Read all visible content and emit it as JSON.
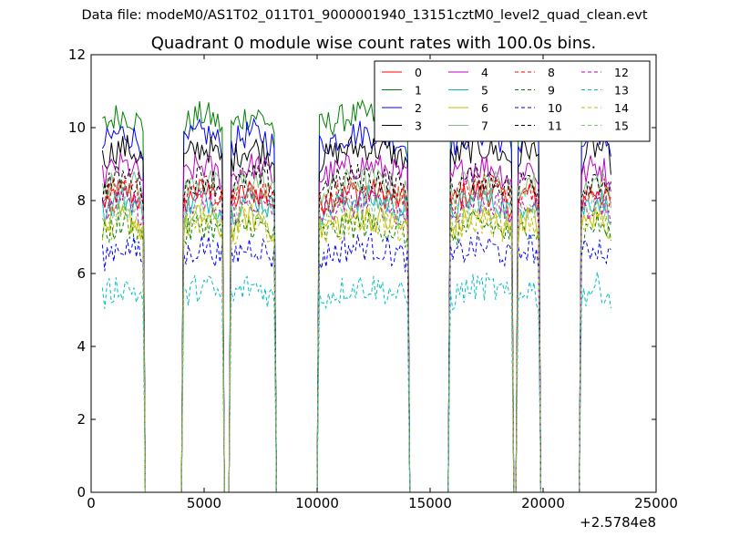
{
  "chart_data": {
    "type": "line",
    "suptitle": "Data file: modeM0/AS1T02_011T01_9000001940_13151cztM0_level2_quad_clean.evt",
    "title": "Quadrant 0 module wise count rates with 100.0s bins.",
    "xlabel": "",
    "ylabel": "",
    "x_offset_label": "+2.5784e8",
    "xlim": [
      0,
      25000
    ],
    "ylim": [
      0,
      12
    ],
    "x_ticks": [
      "0",
      "5000",
      "10000",
      "15000",
      "20000",
      "25000"
    ],
    "y_ticks": [
      "0",
      "2",
      "4",
      "6",
      "8",
      "10",
      "12"
    ],
    "grid": false,
    "legend": {
      "position": "top-right",
      "ncol": 4
    },
    "segments": [
      {
        "start": 500,
        "end": 2300
      },
      {
        "start": 4100,
        "end": 5800
      },
      {
        "start": 6200,
        "end": 8100
      },
      {
        "start": 10100,
        "end": 14000
      },
      {
        "start": 15900,
        "end": 18600
      },
      {
        "start": 18900,
        "end": 19800
      },
      {
        "start": 21700,
        "end": 23000
      }
    ],
    "series": [
      {
        "name": "0",
        "color": "#ff0000",
        "dash": false,
        "level": 7.9
      },
      {
        "name": "1",
        "color": "#008000",
        "dash": false,
        "level": 10.0
      },
      {
        "name": "2",
        "color": "#0000ff",
        "dash": false,
        "level": 9.5
      },
      {
        "name": "3",
        "color": "#000000",
        "dash": false,
        "level": 9.1
      },
      {
        "name": "4",
        "color": "#bf00bf",
        "dash": false,
        "level": 8.6
      },
      {
        "name": "5",
        "color": "#00bfbf",
        "dash": false,
        "level": 7.7
      },
      {
        "name": "6",
        "color": "#bfbf00",
        "dash": false,
        "level": 7.2
      },
      {
        "name": "7",
        "color": "#7fbf7f",
        "dash": false,
        "level": 8.2
      },
      {
        "name": "8",
        "color": "#ff0000",
        "dash": true,
        "level": 8.0
      },
      {
        "name": "9",
        "color": "#008000",
        "dash": true,
        "level": 7.0
      },
      {
        "name": "10",
        "color": "#0000ff",
        "dash": true,
        "level": 6.4
      },
      {
        "name": "11",
        "color": "#000000",
        "dash": true,
        "level": 8.3
      },
      {
        "name": "12",
        "color": "#bf00bf",
        "dash": true,
        "level": 7.6
      },
      {
        "name": "13",
        "color": "#00bfbf",
        "dash": true,
        "level": 5.3
      },
      {
        "name": "14",
        "color": "#bfbf00",
        "dash": true,
        "level": 7.1
      },
      {
        "name": "15",
        "color": "#7fbf7f",
        "dash": true,
        "level": 7.5
      }
    ]
  }
}
